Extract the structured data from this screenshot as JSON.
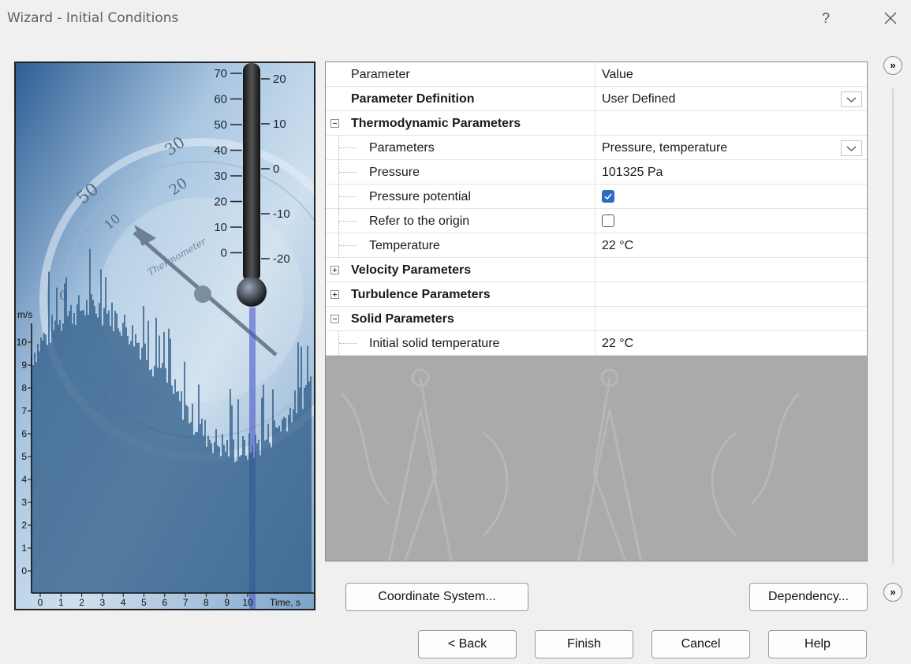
{
  "window": {
    "title": "Wizard - Initial Conditions",
    "help_label": "?"
  },
  "grid": {
    "header": {
      "name": "Parameter",
      "value": "Value"
    },
    "definition": {
      "name": "Parameter Definition",
      "value": "User Defined"
    },
    "thermo": {
      "name": "Thermodynamic Parameters",
      "parameters": {
        "name": "Parameters",
        "value": "Pressure, temperature"
      },
      "pressure": {
        "name": "Pressure",
        "value": "101325 Pa"
      },
      "pressure_potential": {
        "name": "Pressure potential",
        "checked": true
      },
      "refer_origin": {
        "name": "Refer to the origin",
        "checked": false
      },
      "temperature": {
        "name": "Temperature",
        "value": "22 °C"
      }
    },
    "velocity": {
      "name": "Velocity Parameters"
    },
    "turbulence": {
      "name": "Turbulence Parameters"
    },
    "solid": {
      "name": "Solid Parameters",
      "initial_temp": {
        "name": "Initial solid temperature",
        "value": "22 °C"
      }
    }
  },
  "buttons": {
    "coordinate_system": "Coordinate System...",
    "dependency": "Dependency...",
    "back": "< Back",
    "finish": "Finish",
    "cancel": "Cancel",
    "help": "Help"
  },
  "illustration": {
    "thermometer_left_scale": [
      "70",
      "60",
      "50",
      "40",
      "30",
      "20",
      "10",
      "0"
    ],
    "thermometer_right_scale": [
      "20",
      "10",
      "0",
      "-10",
      "-20"
    ],
    "chart_y_label": "m/s",
    "chart_y_ticks": [
      "10",
      "9",
      "8",
      "7",
      "6",
      "5",
      "4",
      "3",
      "2",
      "1",
      "0"
    ],
    "chart_x_ticks": [
      "0",
      "1",
      "2",
      "3",
      "4",
      "5",
      "6",
      "7",
      "8",
      "9",
      "10"
    ],
    "chart_x_label": "Time, s"
  },
  "icons": {
    "expand": "double-chevron-right-icon",
    "close": "close-icon",
    "dropdown": "chevron-down-icon"
  }
}
